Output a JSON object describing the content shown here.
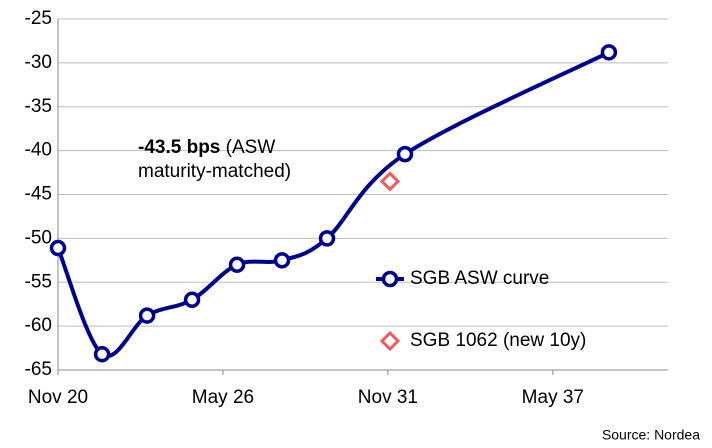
{
  "chart_data": {
    "type": "line",
    "annotation": {
      "bold": "-43.5 bps",
      "text": "(ASW maturity-matched)"
    },
    "source": "Source: Nordea",
    "series": [
      {
        "name": "SGB ASW curve",
        "color": "#000090",
        "marker": "circle",
        "x": [
          2020.83,
          2022.3,
          2023.8,
          2025.3,
          2026.8,
          2028.3,
          2029.8,
          2032.4,
          2039.2
        ],
        "values": [
          -51.1,
          -63.2,
          -58.8,
          -57.0,
          -53.0,
          -52.5,
          -50.0,
          -40.4,
          -28.8
        ]
      },
      {
        "name": "SGB 1062 (new 10y)",
        "color": "#f05a5a",
        "marker": "diamond",
        "x": [
          2031.9
        ],
        "values": [
          -43.5
        ]
      }
    ],
    "xlim": [
      2020.83,
      2041.17
    ],
    "xticks": [
      {
        "value": 2020.83,
        "label": "Nov 20"
      },
      {
        "value": 2026.33,
        "label": "May 26"
      },
      {
        "value": 2031.83,
        "label": "Nov 31"
      },
      {
        "value": 2037.33,
        "label": "May 37"
      }
    ],
    "ylim": [
      -65,
      -25
    ],
    "yticks": [
      -65,
      -60,
      -55,
      -50,
      -45,
      -40,
      -35,
      -30,
      -25
    ],
    "grid": true
  }
}
